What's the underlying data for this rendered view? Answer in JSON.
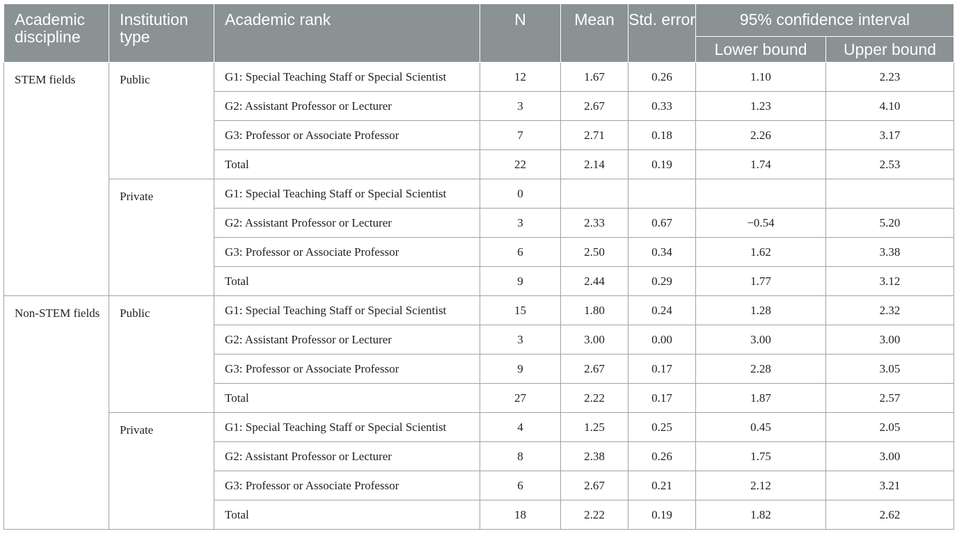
{
  "headers": {
    "discipline": "Academic discipline",
    "institution": "Institution type",
    "rank": "Academic rank",
    "n": "N",
    "mean": "Mean",
    "se": "Std. error",
    "ci": "95% confidence interval",
    "lower": "Lower bound",
    "upper": "Upper bound"
  },
  "groups": [
    {
      "discipline": "STEM fields",
      "institutions": [
        {
          "type": "Public",
          "rows": [
            {
              "rank": "G1: Special Teaching Staff or Special Scientist",
              "n": "12",
              "mean": "1.67",
              "se": "0.26",
              "lower": "1.10",
              "upper": "2.23"
            },
            {
              "rank": "G2: Assistant Professor or Lecturer",
              "n": "3",
              "mean": "2.67",
              "se": "0.33",
              "lower": "1.23",
              "upper": "4.10"
            },
            {
              "rank": "G3: Professor or Associate Professor",
              "n": "7",
              "mean": "2.71",
              "se": "0.18",
              "lower": "2.26",
              "upper": "3.17"
            },
            {
              "rank": "Total",
              "n": "22",
              "mean": "2.14",
              "se": "0.19",
              "lower": "1.74",
              "upper": "2.53"
            }
          ]
        },
        {
          "type": "Private",
          "rows": [
            {
              "rank": "G1: Special Teaching Staff or Special Scientist",
              "n": "0",
              "mean": "",
              "se": "",
              "lower": "",
              "upper": ""
            },
            {
              "rank": "G2: Assistant Professor or Lecturer",
              "n": "3",
              "mean": "2.33",
              "se": "0.67",
              "lower": "−0.54",
              "upper": "5.20"
            },
            {
              "rank": "G3: Professor or Associate Professor",
              "n": "6",
              "mean": "2.50",
              "se": "0.34",
              "lower": "1.62",
              "upper": "3.38"
            },
            {
              "rank": "Total",
              "n": "9",
              "mean": "2.44",
              "se": "0.29",
              "lower": "1.77",
              "upper": "3.12"
            }
          ]
        }
      ]
    },
    {
      "discipline": "Non-STEM fields",
      "institutions": [
        {
          "type": "Public",
          "rows": [
            {
              "rank": "G1: Special Teaching Staff or Special Scientist",
              "n": "15",
              "mean": "1.80",
              "se": "0.24",
              "lower": "1.28",
              "upper": "2.32"
            },
            {
              "rank": "G2: Assistant Professor or Lecturer",
              "n": "3",
              "mean": "3.00",
              "se": "0.00",
              "lower": "3.00",
              "upper": "3.00"
            },
            {
              "rank": "G3: Professor or Associate Professor",
              "n": "9",
              "mean": "2.67",
              "se": "0.17",
              "lower": "2.28",
              "upper": "3.05"
            },
            {
              "rank": "Total",
              "n": "27",
              "mean": "2.22",
              "se": "0.17",
              "lower": "1.87",
              "upper": "2.57"
            }
          ]
        },
        {
          "type": "Private",
          "rows": [
            {
              "rank": "G1: Special Teaching Staff or Special Scientist",
              "n": "4",
              "mean": "1.25",
              "se": "0.25",
              "lower": "0.45",
              "upper": "2.05"
            },
            {
              "rank": "G2: Assistant Professor or Lecturer",
              "n": "8",
              "mean": "2.38",
              "se": "0.26",
              "lower": "1.75",
              "upper": "3.00"
            },
            {
              "rank": "G3: Professor or Associate Professor",
              "n": "6",
              "mean": "2.67",
              "se": "0.21",
              "lower": "2.12",
              "upper": "3.21"
            },
            {
              "rank": "Total",
              "n": "18",
              "mean": "2.22",
              "se": "0.19",
              "lower": "1.82",
              "upper": "2.62"
            }
          ]
        }
      ]
    }
  ]
}
